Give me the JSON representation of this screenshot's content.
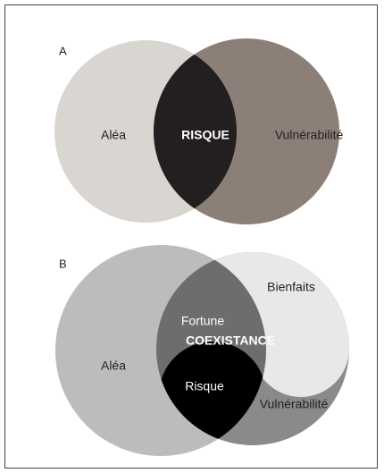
{
  "panels": [
    {
      "label": "A",
      "left": "Aléa",
      "center": "RISQUE",
      "right": "Vulnérabilité"
    },
    {
      "label": "B",
      "left": "Aléa",
      "center": "COEXISTANCE",
      "upper": "Fortune",
      "lower": "Risque",
      "top_right": "Bienfaits",
      "bottom_right": "Vulnérabilité"
    }
  ]
}
